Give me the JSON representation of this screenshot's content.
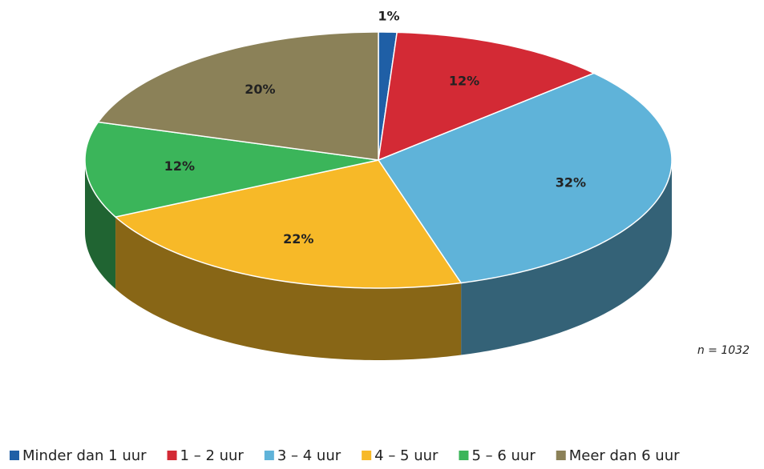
{
  "chart_data": {
    "type": "pie3d",
    "categories": [
      "Minder dan 1 uur",
      "1 – 2 uur",
      "3 – 4 uur",
      "4 – 5 uur",
      "5 – 6 uur",
      "Meer dan 6 uur"
    ],
    "values": [
      1,
      12,
      32,
      22,
      12,
      20
    ],
    "value_labels": [
      "1%",
      "12%",
      "32%",
      "22%",
      "12%",
      "20%"
    ],
    "colors": [
      "#1f5fa6",
      "#d32a35",
      "#5fb3d9",
      "#f7b928",
      "#3bb55a",
      "#8b8158"
    ],
    "annotation": "n = 1032"
  }
}
